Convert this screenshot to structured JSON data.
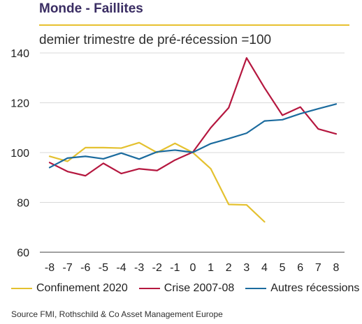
{
  "title": "Monde - Faillites",
  "subtitle": "demier trimestre de pré-récession =100",
  "source": "Source FMI, Rothschild & Co Asset Management Europe",
  "colors": {
    "confinement": "#e4c12f",
    "crise": "#b5173f",
    "autres": "#1b6b9e",
    "title": "#3a2d63",
    "axis": "#808080",
    "grid": "#d9d9d9"
  },
  "chart_data": {
    "type": "line",
    "title": "Monde - Faillites",
    "subtitle": "demier trimestre de pré-récession =100",
    "x": [
      -8,
      -7,
      -6,
      -5,
      -4,
      -3,
      -2,
      -1,
      0,
      1,
      2,
      3,
      4,
      5,
      6,
      7,
      8
    ],
    "x_tick_labels": [
      "-8",
      "-7",
      "-6",
      "-5",
      "-4",
      "-3",
      "-2",
      "-1",
      "0",
      "1",
      "2",
      "3",
      "4",
      "5",
      "6",
      "7",
      "8"
    ],
    "y_ticks": [
      60,
      80,
      100,
      120,
      140
    ],
    "ylim": [
      60,
      140
    ],
    "grid": true,
    "legend_position": "bottom",
    "series": [
      {
        "name": "Confinement 2020",
        "color": "#e4c12f",
        "x": [
          -8,
          -7,
          -6,
          -5,
          -4,
          -3,
          -2,
          -1,
          0,
          1,
          2,
          3,
          4
        ],
        "values": [
          98.5,
          96.5,
          102,
          102,
          101.8,
          104,
          100,
          103.7,
          100,
          93.5,
          79.2,
          79,
          72.2
        ]
      },
      {
        "name": "Crise 2007-08",
        "color": "#b5173f",
        "x": [
          -8,
          -7,
          -6,
          -5,
          -4,
          -3,
          -2,
          -1,
          0,
          1,
          2,
          3,
          4,
          5,
          6,
          7,
          8
        ],
        "values": [
          96,
          92.4,
          90.7,
          95.7,
          91.6,
          93.5,
          92.8,
          97,
          100.2,
          110,
          118,
          138,
          126,
          115,
          118.3,
          109.5,
          107.5
        ]
      },
      {
        "name": "Autres récessions",
        "color": "#1b6b9e",
        "x": [
          -8,
          -7,
          -6,
          -5,
          -4,
          -3,
          -2,
          -1,
          0,
          1,
          2,
          3,
          4,
          5,
          6,
          7,
          8
        ],
        "values": [
          94,
          97.8,
          98.5,
          97.5,
          99.8,
          97.4,
          100.3,
          101,
          100.1,
          103.6,
          105.6,
          107.8,
          112.7,
          113.2,
          115.6,
          117.6,
          119.5
        ]
      }
    ]
  }
}
